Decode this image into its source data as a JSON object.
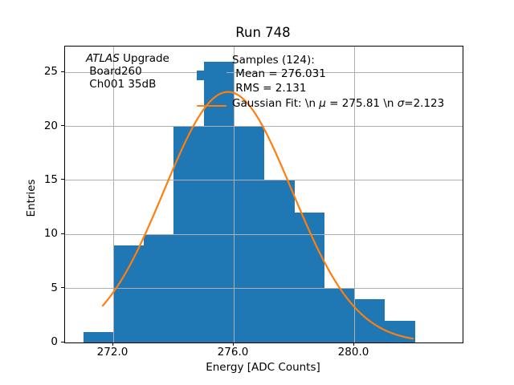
{
  "chart_data": {
    "type": "bar",
    "subtype": "histogram-with-gaussian-fit",
    "title": "Run 748",
    "xlabel": "Energy [ADC Counts]",
    "ylabel": "Entries",
    "bin_edges": [
      271,
      272,
      273,
      274,
      275,
      276,
      277,
      278,
      279,
      280,
      281,
      282
    ],
    "counts": [
      1,
      9,
      10,
      20,
      26,
      20,
      15,
      12,
      5,
      4,
      2
    ],
    "total_samples": 124,
    "bar_color": "#1f77b4",
    "fit": {
      "type": "gaussian",
      "mu": 275.81,
      "sigma": 2.123,
      "amplitude": 23.2,
      "x_start": 271.65,
      "x_end": 281.95,
      "color": "#ff7f0e",
      "linewidth": 2.2
    },
    "xlim": [
      270.4,
      283.6
    ],
    "ylim": [
      0,
      27.4
    ],
    "xticks": [
      272.0,
      276.0,
      280.0
    ],
    "xtick_labels": [
      "272.0",
      "276.0",
      "280.0"
    ],
    "yticks": [
      0,
      5,
      10,
      15,
      20,
      25
    ],
    "ytick_labels": [
      "0",
      "5",
      "10",
      "15",
      "20",
      "25"
    ],
    "grid": true,
    "grid_color": "#b0b0b0",
    "legend_position": "upper right inside, frameless",
    "legend": {
      "entries": [
        {
          "swatch": "patch",
          "color": "#1f77b4",
          "label": "Samples (124):\n Mean = 276.031\n RMS = 2.131"
        },
        {
          "swatch": "line",
          "color": "#ff7f0e",
          "label": "Gaussian Fit: \\n μ = 275.81 \\n σ=2.123"
        }
      ],
      "gauss_parts": [
        "Gaussian Fit: \\n ",
        "μ",
        " = 275.81 \\n ",
        "σ",
        "=2.123"
      ]
    },
    "annotation": {
      "line1_italic": "ATLAS",
      "line1_rest": " Upgrade",
      "line2": " Board260",
      "line3": " Ch001 35dB"
    }
  }
}
